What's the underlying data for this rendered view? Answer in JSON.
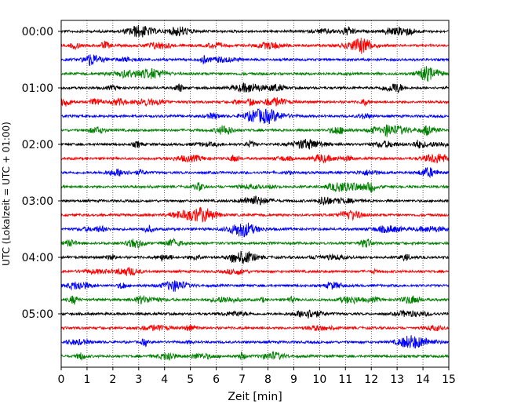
{
  "chart_data": {
    "type": "line",
    "title": "",
    "xlabel": "Zeit  [min]",
    "ylabel": "UTC (Lokalzeit = UTC + 01:00)",
    "xlim": [
      0,
      15
    ],
    "x_ticks": [
      "0",
      "1",
      "2",
      "3",
      "4",
      "5",
      "6",
      "7",
      "8",
      "9",
      "10",
      "11",
      "12",
      "13",
      "14",
      "15"
    ],
    "y_tick_labels": [
      "00:00",
      "01:00",
      "02:00",
      "03:00",
      "04:00",
      "05:00"
    ],
    "rows_per_hour": 4,
    "row_minutes": 15,
    "trace_colors": [
      "#000000",
      "#ff0000",
      "#0000ff",
      "#008000"
    ],
    "grid_x": "dotted",
    "legend": "none",
    "traces": [
      {
        "start": "00:00",
        "color": "#000000"
      },
      {
        "start": "00:15",
        "color": "#ff0000"
      },
      {
        "start": "00:30",
        "color": "#0000ff"
      },
      {
        "start": "00:45",
        "color": "#008000"
      },
      {
        "start": "01:00",
        "color": "#000000"
      },
      {
        "start": "01:15",
        "color": "#ff0000"
      },
      {
        "start": "01:30",
        "color": "#0000ff"
      },
      {
        "start": "01:45",
        "color": "#008000"
      },
      {
        "start": "02:00",
        "color": "#000000"
      },
      {
        "start": "02:15",
        "color": "#ff0000"
      },
      {
        "start": "02:30",
        "color": "#0000ff"
      },
      {
        "start": "02:45",
        "color": "#008000"
      },
      {
        "start": "03:00",
        "color": "#000000"
      },
      {
        "start": "03:15",
        "color": "#ff0000"
      },
      {
        "start": "03:30",
        "color": "#0000ff"
      },
      {
        "start": "03:45",
        "color": "#008000"
      },
      {
        "start": "04:00",
        "color": "#000000"
      },
      {
        "start": "04:15",
        "color": "#ff0000"
      },
      {
        "start": "04:30",
        "color": "#0000ff"
      },
      {
        "start": "04:45",
        "color": "#008000"
      },
      {
        "start": "05:00",
        "color": "#000000"
      },
      {
        "start": "05:15",
        "color": "#ff0000"
      },
      {
        "start": "05:30",
        "color": "#0000ff"
      },
      {
        "start": "05:45",
        "color": "#008000"
      }
    ]
  }
}
